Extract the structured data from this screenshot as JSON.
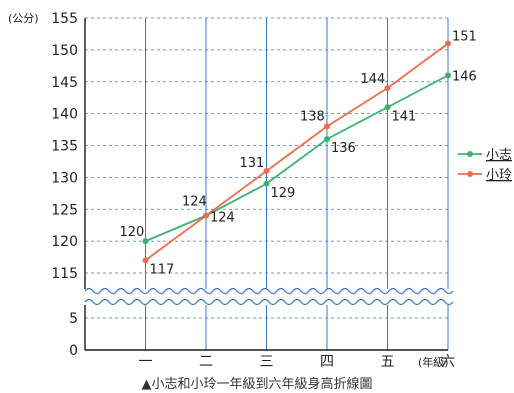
{
  "chart_data": {
    "type": "line",
    "title": "▲小志和小玲一年級到六年級身高折線圖",
    "y_unit": "(公分)",
    "x_unit": "(年級)",
    "categories": [
      "一",
      "二",
      "三",
      "四",
      "五",
      "六"
    ],
    "ylim": [
      0,
      155
    ],
    "y_axis_break": [
      5,
      115
    ],
    "y_ticks": [
      "0",
      "5",
      "115",
      "120",
      "125",
      "130",
      "135",
      "140",
      "145",
      "150",
      "155"
    ],
    "grid": true,
    "legend_position": "right",
    "series": [
      {
        "name": "小志",
        "color": "#3cb371",
        "values": [
          120,
          124,
          129,
          136,
          141,
          146
        ]
      },
      {
        "name": "小玲",
        "color": "#f26b4f",
        "values": [
          117,
          124,
          131,
          138,
          144,
          151
        ]
      }
    ]
  }
}
